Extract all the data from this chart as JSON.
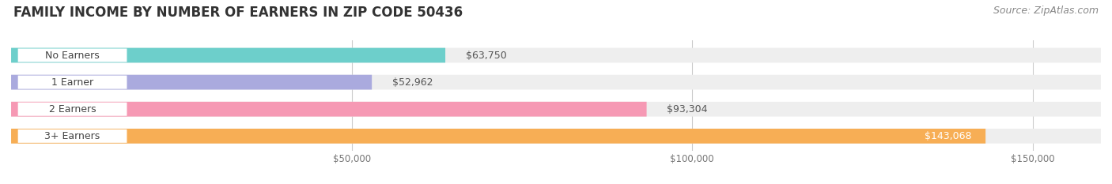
{
  "title": "FAMILY INCOME BY NUMBER OF EARNERS IN ZIP CODE 50436",
  "source": "Source: ZipAtlas.com",
  "categories": [
    "No Earners",
    "1 Earner",
    "2 Earners",
    "3+ Earners"
  ],
  "values": [
    63750,
    52962,
    93304,
    143068
  ],
  "bar_colors": [
    "#6DCFCB",
    "#AAAADE",
    "#F699B4",
    "#F7AE55"
  ],
  "value_labels": [
    "$63,750",
    "$52,962",
    "$93,304",
    "$143,068"
  ],
  "xlim": [
    0,
    160000
  ],
  "xticks": [
    50000,
    100000,
    150000
  ],
  "xtick_labels": [
    "$50,000",
    "$100,000",
    "$150,000"
  ],
  "background_color": "#ffffff",
  "bar_bg_color": "#eeeeee",
  "title_fontsize": 12,
  "source_fontsize": 9,
  "label_fontsize": 9,
  "value_fontsize": 9
}
